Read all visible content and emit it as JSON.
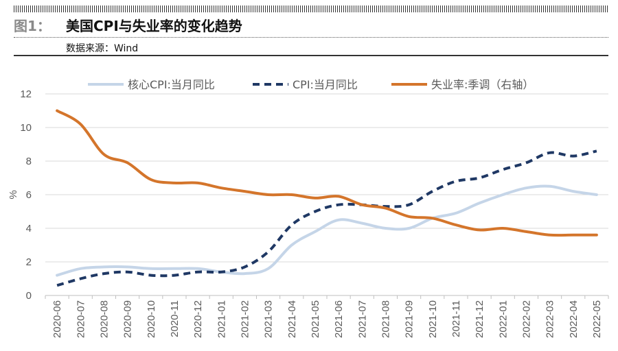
{
  "header": {
    "figure_label": "图1：",
    "title": "美国CPI与失业率的变化趋势",
    "source": "数据来源：Wind"
  },
  "chart_data": {
    "type": "line",
    "categories": [
      "2020-06",
      "2020-07",
      "2020-08",
      "2020-09",
      "2020-10",
      "2020-11",
      "2020-12",
      "2021-01",
      "2021-02",
      "2021-03",
      "2021-04",
      "2021-05",
      "2021-06",
      "2021-07",
      "2021-08",
      "2021-09",
      "2021-10",
      "2021-11",
      "2021-12",
      "2022-01",
      "2022-02",
      "2022-03",
      "2022-04",
      "2022-05"
    ],
    "ylabel": "%",
    "ylim": [
      0,
      12
    ],
    "yticks": [
      0,
      2,
      4,
      6,
      8,
      10,
      12
    ],
    "legend_position": "top",
    "series": [
      {
        "name": "核心CPI:当月同比",
        "color": "#c5d5e8",
        "dash": "solid",
        "values": [
          1.2,
          1.6,
          1.7,
          1.7,
          1.6,
          1.6,
          1.6,
          1.4,
          1.3,
          1.6,
          3.0,
          3.8,
          4.5,
          4.3,
          4.0,
          4.0,
          4.6,
          4.9,
          5.5,
          6.0,
          6.4,
          6.5,
          6.2,
          6.0
        ]
      },
      {
        "name": "CPI:当月同比",
        "color": "#1f3864",
        "dash": "dashed",
        "values": [
          0.6,
          1.0,
          1.3,
          1.4,
          1.2,
          1.2,
          1.4,
          1.4,
          1.7,
          2.6,
          4.2,
          5.0,
          5.4,
          5.4,
          5.3,
          5.4,
          6.2,
          6.8,
          7.0,
          7.5,
          7.9,
          8.5,
          8.3,
          8.6
        ]
      },
      {
        "name": "失业率:季调（右轴）",
        "color": "#d4752b",
        "dash": "solid",
        "values": [
          11.0,
          10.2,
          8.4,
          7.9,
          6.9,
          6.7,
          6.7,
          6.4,
          6.2,
          6.0,
          6.0,
          5.8,
          5.9,
          5.4,
          5.2,
          4.7,
          4.6,
          4.2,
          3.9,
          4.0,
          3.8,
          3.6,
          3.6,
          3.6
        ]
      }
    ]
  }
}
